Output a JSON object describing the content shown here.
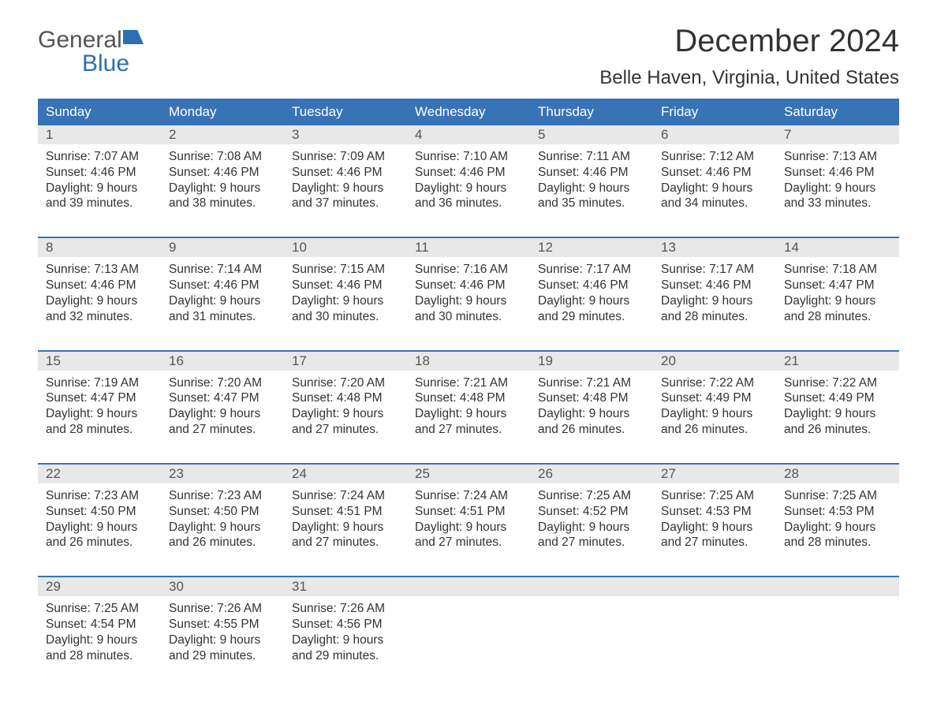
{
  "logo": {
    "word1": "General",
    "word2": "Blue"
  },
  "title": "December 2024",
  "location": "Belle Haven, Virginia, United States",
  "colors": {
    "header_bg": "#3773b5",
    "header_text": "#ffffff",
    "daynum_bg": "#e8e8e8",
    "week_border": "#3773b5",
    "text": "#333333",
    "logo_blue": "#2d6fb5",
    "logo_gray": "#555555",
    "page_bg": "#ffffff"
  },
  "typography": {
    "title_fontsize": 40,
    "location_fontsize": 24,
    "dayname_fontsize": 17,
    "daynum_fontsize": 17,
    "cell_fontsize": 15.5,
    "logo_fontsize": 30
  },
  "daynames": [
    "Sunday",
    "Monday",
    "Tuesday",
    "Wednesday",
    "Thursday",
    "Friday",
    "Saturday"
  ],
  "weeks": [
    [
      {
        "n": "1",
        "sunrise": "Sunrise: 7:07 AM",
        "sunset": "Sunset: 4:46 PM",
        "d1": "Daylight: 9 hours",
        "d2": "and 39 minutes."
      },
      {
        "n": "2",
        "sunrise": "Sunrise: 7:08 AM",
        "sunset": "Sunset: 4:46 PM",
        "d1": "Daylight: 9 hours",
        "d2": "and 38 minutes."
      },
      {
        "n": "3",
        "sunrise": "Sunrise: 7:09 AM",
        "sunset": "Sunset: 4:46 PM",
        "d1": "Daylight: 9 hours",
        "d2": "and 37 minutes."
      },
      {
        "n": "4",
        "sunrise": "Sunrise: 7:10 AM",
        "sunset": "Sunset: 4:46 PM",
        "d1": "Daylight: 9 hours",
        "d2": "and 36 minutes."
      },
      {
        "n": "5",
        "sunrise": "Sunrise: 7:11 AM",
        "sunset": "Sunset: 4:46 PM",
        "d1": "Daylight: 9 hours",
        "d2": "and 35 minutes."
      },
      {
        "n": "6",
        "sunrise": "Sunrise: 7:12 AM",
        "sunset": "Sunset: 4:46 PM",
        "d1": "Daylight: 9 hours",
        "d2": "and 34 minutes."
      },
      {
        "n": "7",
        "sunrise": "Sunrise: 7:13 AM",
        "sunset": "Sunset: 4:46 PM",
        "d1": "Daylight: 9 hours",
        "d2": "and 33 minutes."
      }
    ],
    [
      {
        "n": "8",
        "sunrise": "Sunrise: 7:13 AM",
        "sunset": "Sunset: 4:46 PM",
        "d1": "Daylight: 9 hours",
        "d2": "and 32 minutes."
      },
      {
        "n": "9",
        "sunrise": "Sunrise: 7:14 AM",
        "sunset": "Sunset: 4:46 PM",
        "d1": "Daylight: 9 hours",
        "d2": "and 31 minutes."
      },
      {
        "n": "10",
        "sunrise": "Sunrise: 7:15 AM",
        "sunset": "Sunset: 4:46 PM",
        "d1": "Daylight: 9 hours",
        "d2": "and 30 minutes."
      },
      {
        "n": "11",
        "sunrise": "Sunrise: 7:16 AM",
        "sunset": "Sunset: 4:46 PM",
        "d1": "Daylight: 9 hours",
        "d2": "and 30 minutes."
      },
      {
        "n": "12",
        "sunrise": "Sunrise: 7:17 AM",
        "sunset": "Sunset: 4:46 PM",
        "d1": "Daylight: 9 hours",
        "d2": "and 29 minutes."
      },
      {
        "n": "13",
        "sunrise": "Sunrise: 7:17 AM",
        "sunset": "Sunset: 4:46 PM",
        "d1": "Daylight: 9 hours",
        "d2": "and 28 minutes."
      },
      {
        "n": "14",
        "sunrise": "Sunrise: 7:18 AM",
        "sunset": "Sunset: 4:47 PM",
        "d1": "Daylight: 9 hours",
        "d2": "and 28 minutes."
      }
    ],
    [
      {
        "n": "15",
        "sunrise": "Sunrise: 7:19 AM",
        "sunset": "Sunset: 4:47 PM",
        "d1": "Daylight: 9 hours",
        "d2": "and 28 minutes."
      },
      {
        "n": "16",
        "sunrise": "Sunrise: 7:20 AM",
        "sunset": "Sunset: 4:47 PM",
        "d1": "Daylight: 9 hours",
        "d2": "and 27 minutes."
      },
      {
        "n": "17",
        "sunrise": "Sunrise: 7:20 AM",
        "sunset": "Sunset: 4:48 PM",
        "d1": "Daylight: 9 hours",
        "d2": "and 27 minutes."
      },
      {
        "n": "18",
        "sunrise": "Sunrise: 7:21 AM",
        "sunset": "Sunset: 4:48 PM",
        "d1": "Daylight: 9 hours",
        "d2": "and 27 minutes."
      },
      {
        "n": "19",
        "sunrise": "Sunrise: 7:21 AM",
        "sunset": "Sunset: 4:48 PM",
        "d1": "Daylight: 9 hours",
        "d2": "and 26 minutes."
      },
      {
        "n": "20",
        "sunrise": "Sunrise: 7:22 AM",
        "sunset": "Sunset: 4:49 PM",
        "d1": "Daylight: 9 hours",
        "d2": "and 26 minutes."
      },
      {
        "n": "21",
        "sunrise": "Sunrise: 7:22 AM",
        "sunset": "Sunset: 4:49 PM",
        "d1": "Daylight: 9 hours",
        "d2": "and 26 minutes."
      }
    ],
    [
      {
        "n": "22",
        "sunrise": "Sunrise: 7:23 AM",
        "sunset": "Sunset: 4:50 PM",
        "d1": "Daylight: 9 hours",
        "d2": "and 26 minutes."
      },
      {
        "n": "23",
        "sunrise": "Sunrise: 7:23 AM",
        "sunset": "Sunset: 4:50 PM",
        "d1": "Daylight: 9 hours",
        "d2": "and 26 minutes."
      },
      {
        "n": "24",
        "sunrise": "Sunrise: 7:24 AM",
        "sunset": "Sunset: 4:51 PM",
        "d1": "Daylight: 9 hours",
        "d2": "and 27 minutes."
      },
      {
        "n": "25",
        "sunrise": "Sunrise: 7:24 AM",
        "sunset": "Sunset: 4:51 PM",
        "d1": "Daylight: 9 hours",
        "d2": "and 27 minutes."
      },
      {
        "n": "26",
        "sunrise": "Sunrise: 7:25 AM",
        "sunset": "Sunset: 4:52 PM",
        "d1": "Daylight: 9 hours",
        "d2": "and 27 minutes."
      },
      {
        "n": "27",
        "sunrise": "Sunrise: 7:25 AM",
        "sunset": "Sunset: 4:53 PM",
        "d1": "Daylight: 9 hours",
        "d2": "and 27 minutes."
      },
      {
        "n": "28",
        "sunrise": "Sunrise: 7:25 AM",
        "sunset": "Sunset: 4:53 PM",
        "d1": "Daylight: 9 hours",
        "d2": "and 28 minutes."
      }
    ],
    [
      {
        "n": "29",
        "sunrise": "Sunrise: 7:25 AM",
        "sunset": "Sunset: 4:54 PM",
        "d1": "Daylight: 9 hours",
        "d2": "and 28 minutes."
      },
      {
        "n": "30",
        "sunrise": "Sunrise: 7:26 AM",
        "sunset": "Sunset: 4:55 PM",
        "d1": "Daylight: 9 hours",
        "d2": "and 29 minutes."
      },
      {
        "n": "31",
        "sunrise": "Sunrise: 7:26 AM",
        "sunset": "Sunset: 4:56 PM",
        "d1": "Daylight: 9 hours",
        "d2": "and 29 minutes."
      },
      null,
      null,
      null,
      null
    ]
  ]
}
